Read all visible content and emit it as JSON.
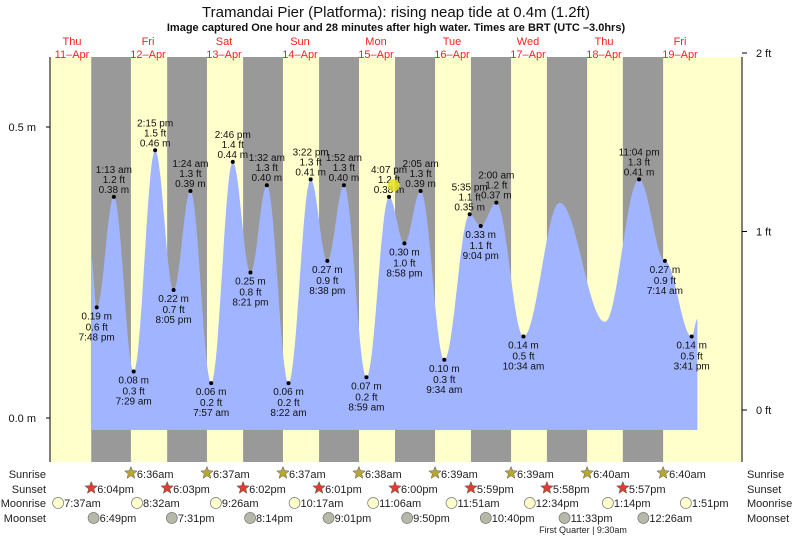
{
  "chart_data": {
    "type": "area",
    "title": "Tramandai Pier (Platforma): rising  neap tide at 0.4m (1.2ft)",
    "subtitle": "Image captured One hour and 28 minutes after high water. Times are BRT (UTC –3.0hrs)",
    "left_axis": {
      "ticks": [
        {
          "label": "0.0 m",
          "value": 0.0
        },
        {
          "label": "0.5 m",
          "value": 0.5
        }
      ]
    },
    "right_axis": {
      "ticks": [
        {
          "label": "0 ft",
          "value": 0
        },
        {
          "label": "1 ft",
          "value": 1
        },
        {
          "label": "2 ft",
          "value": 2
        }
      ]
    },
    "days": [
      {
        "dow": "Thu",
        "date": "11–Apr"
      },
      {
        "dow": "Fri",
        "date": "12–Apr"
      },
      {
        "dow": "Sat",
        "date": "13–Apr"
      },
      {
        "dow": "Sun",
        "date": "14–Apr"
      },
      {
        "dow": "Mon",
        "date": "15–Apr"
      },
      {
        "dow": "Tue",
        "date": "16–Apr"
      },
      {
        "dow": "Wed",
        "date": "17–Apr"
      },
      {
        "dow": "Thu",
        "date": "18–Apr"
      },
      {
        "dow": "Fri",
        "date": "19–Apr"
      }
    ],
    "curve_start": {
      "day": 0,
      "hour": 18.0,
      "m": 0.28
    },
    "curve_end": {
      "day": 8,
      "hour": 17.5,
      "m": 0.17
    },
    "extrema": [
      {
        "type": "low",
        "day": 0,
        "hour": 19.8,
        "time": "7:48 pm",
        "m": "0.19 m",
        "ft": "0.6 ft",
        "value": 0.19
      },
      {
        "type": "high",
        "day": 1,
        "hour": 1.22,
        "time": "1:13 am",
        "m": "0.38 m",
        "ft": "1.2 ft",
        "value": 0.38
      },
      {
        "type": "low",
        "day": 1,
        "hour": 7.48,
        "time": "7:29 am",
        "m": "0.08 m",
        "ft": "0.3 ft",
        "value": 0.08
      },
      {
        "type": "high",
        "day": 1,
        "hour": 14.25,
        "time": "2:15 pm",
        "m": "0.46 m",
        "ft": "1.5 ft",
        "value": 0.46
      },
      {
        "type": "low",
        "day": 1,
        "hour": 20.08,
        "time": "8:05 pm",
        "m": "0.22 m",
        "ft": "0.7 ft",
        "value": 0.22
      },
      {
        "type": "high",
        "day": 2,
        "hour": 1.4,
        "time": "1:24 am",
        "m": "0.39 m",
        "ft": "1.3 ft",
        "value": 0.39
      },
      {
        "type": "low",
        "day": 2,
        "hour": 7.95,
        "time": "7:57 am",
        "m": "0.06 m",
        "ft": "0.2 ft",
        "value": 0.06
      },
      {
        "type": "high",
        "day": 2,
        "hour": 14.77,
        "time": "2:46 pm",
        "m": "0.44 m",
        "ft": "1.4 ft",
        "value": 0.44
      },
      {
        "type": "low",
        "day": 2,
        "hour": 20.35,
        "time": "8:21 pm",
        "m": "0.25 m",
        "ft": "0.8 ft",
        "value": 0.25
      },
      {
        "type": "high",
        "day": 3,
        "hour": 1.53,
        "time": "1:32 am",
        "m": "0.40 m",
        "ft": "1.3 ft",
        "value": 0.4
      },
      {
        "type": "low",
        "day": 3,
        "hour": 8.37,
        "time": "8:22 am",
        "m": "0.06 m",
        "ft": "0.2 ft",
        "value": 0.06
      },
      {
        "type": "high",
        "day": 3,
        "hour": 15.37,
        "time": "3:22 pm",
        "m": "0.41 m",
        "ft": "1.3 ft",
        "value": 0.41
      },
      {
        "type": "low",
        "day": 3,
        "hour": 20.63,
        "time": "8:38 pm",
        "m": "0.27 m",
        "ft": "0.9 ft",
        "value": 0.27
      },
      {
        "type": "high",
        "day": 4,
        "hour": 1.87,
        "time": "1:52 am",
        "m": "0.40 m",
        "ft": "1.3 ft",
        "value": 0.4
      },
      {
        "type": "low",
        "day": 4,
        "hour": 8.98,
        "time": "8:59 am",
        "m": "0.07 m",
        "ft": "0.2 ft",
        "value": 0.07
      },
      {
        "type": "high",
        "day": 4,
        "hour": 16.12,
        "time": "4:07 pm",
        "m": "0.38 m",
        "ft": "1.2 ft",
        "value": 0.38
      },
      {
        "type": "low",
        "day": 4,
        "hour": 20.97,
        "time": "8:58 pm",
        "m": "0.30 m",
        "ft": "1.0 ft",
        "value": 0.3
      },
      {
        "type": "high",
        "day": 5,
        "hour": 2.08,
        "time": "2:05 am",
        "m": "0.39 m",
        "ft": "1.3 ft",
        "value": 0.39
      },
      {
        "type": "low",
        "day": 5,
        "hour": 9.57,
        "time": "9:34 am",
        "m": "0.10 m",
        "ft": "0.3 ft",
        "value": 0.1
      },
      {
        "type": "high",
        "day": 5,
        "hour": 17.58,
        "time": "5:35 pm",
        "m": "0.35 m",
        "ft": "1.1 ft",
        "value": 0.35
      },
      {
        "type": "low",
        "day": 5,
        "hour": 21.07,
        "time": "9:04 pm",
        "m": "0.33 m",
        "ft": "1.1 ft",
        "value": 0.33
      },
      {
        "type": "high",
        "day": 6,
        "hour": 2.0,
        "time": "2:00 am",
        "m": "0.37 m",
        "ft": "1.2 ft",
        "value": 0.37
      },
      {
        "type": "low",
        "day": 6,
        "hour": 10.57,
        "time": "10:34 am",
        "m": "0.14 m",
        "ft": "0.5 ft",
        "value": 0.14
      },
      {
        "type": "high",
        "day": 6,
        "hour": 22.0,
        "value": 0.37
      },
      {
        "type": "low",
        "day": 7,
        "hour": 12.3,
        "value": 0.165
      },
      {
        "type": "high",
        "day": 7,
        "hour": 23.07,
        "time": "11:04 pm",
        "m": "0.41 m",
        "ft": "1.3 ft",
        "value": 0.41
      },
      {
        "type": "low",
        "day": 8,
        "hour": 7.23,
        "time": "7:14 am",
        "m": "0.27 m",
        "ft": "0.9 ft",
        "value": 0.27
      },
      {
        "type": "low",
        "day": 8,
        "hour": 15.68,
        "time": "3:41 pm",
        "m": "0.14 m",
        "ft": "0.5 ft",
        "value": 0.14
      }
    ],
    "current": {
      "day": 4,
      "hour": 17.58,
      "m": 0.4
    },
    "colors": {
      "day": "#ffffcc",
      "night": "#999999",
      "water": "#a0b4ff",
      "daylabel": "#ff2020",
      "now": "#e6e020"
    }
  },
  "almanac": {
    "labels": {
      "sunrise": "Sunrise",
      "sunset": "Sunset",
      "moonrise": "Moonrise",
      "moonset": "Moonset"
    },
    "sunrise": [
      {
        "day": 1,
        "hour": 6.6,
        "text": "6:36am"
      },
      {
        "day": 2,
        "hour": 6.62,
        "text": "6:37am"
      },
      {
        "day": 3,
        "hour": 6.62,
        "text": "6:37am"
      },
      {
        "day": 4,
        "hour": 6.63,
        "text": "6:38am"
      },
      {
        "day": 5,
        "hour": 6.65,
        "text": "6:39am"
      },
      {
        "day": 6,
        "hour": 6.65,
        "text": "6:39am"
      },
      {
        "day": 7,
        "hour": 6.67,
        "text": "6:40am"
      },
      {
        "day": 8,
        "hour": 6.67,
        "text": "6:40am"
      }
    ],
    "sunset": [
      {
        "day": 0,
        "hour": 18.07,
        "text": "6:04pm"
      },
      {
        "day": 1,
        "hour": 18.05,
        "text": "6:03pm"
      },
      {
        "day": 2,
        "hour": 18.03,
        "text": "6:02pm"
      },
      {
        "day": 3,
        "hour": 18.02,
        "text": "6:01pm"
      },
      {
        "day": 4,
        "hour": 18.0,
        "text": "6:00pm"
      },
      {
        "day": 5,
        "hour": 17.98,
        "text": "5:59pm"
      },
      {
        "day": 6,
        "hour": 17.97,
        "text": "5:58pm"
      },
      {
        "day": 7,
        "hour": 17.95,
        "text": "5:57pm"
      }
    ],
    "moonrise": [
      {
        "day": 0,
        "hour": 7.62,
        "text": "7:37am"
      },
      {
        "day": 1,
        "hour": 8.53,
        "text": "8:32am"
      },
      {
        "day": 2,
        "hour": 9.43,
        "text": "9:26am"
      },
      {
        "day": 3,
        "hour": 10.28,
        "text": "10:17am"
      },
      {
        "day": 4,
        "hour": 11.1,
        "text": "11:06am"
      },
      {
        "day": 5,
        "hour": 11.85,
        "text": "11:51am"
      },
      {
        "day": 6,
        "hour": 12.57,
        "text": "12:34pm"
      },
      {
        "day": 7,
        "hour": 13.23,
        "text": "1:14pm"
      },
      {
        "day": 8,
        "hour": 13.85,
        "text": "1:51pm"
      }
    ],
    "moonset": [
      {
        "day": 0,
        "hour": 18.82,
        "text": "6:49pm"
      },
      {
        "day": 1,
        "hour": 19.52,
        "text": "7:31pm"
      },
      {
        "day": 2,
        "hour": 20.23,
        "text": "8:14pm"
      },
      {
        "day": 3,
        "hour": 21.02,
        "text": "9:01pm"
      },
      {
        "day": 4,
        "hour": 21.83,
        "text": "9:50pm"
      },
      {
        "day": 5,
        "hour": 22.67,
        "text": "10:40pm"
      },
      {
        "day": 6,
        "hour": 23.55,
        "text": "11:33pm"
      },
      {
        "day": 8,
        "hour": 0.43,
        "text": "12:26am"
      }
    ],
    "moon_phase": {
      "text": "First Quarter | 9:30am"
    }
  }
}
